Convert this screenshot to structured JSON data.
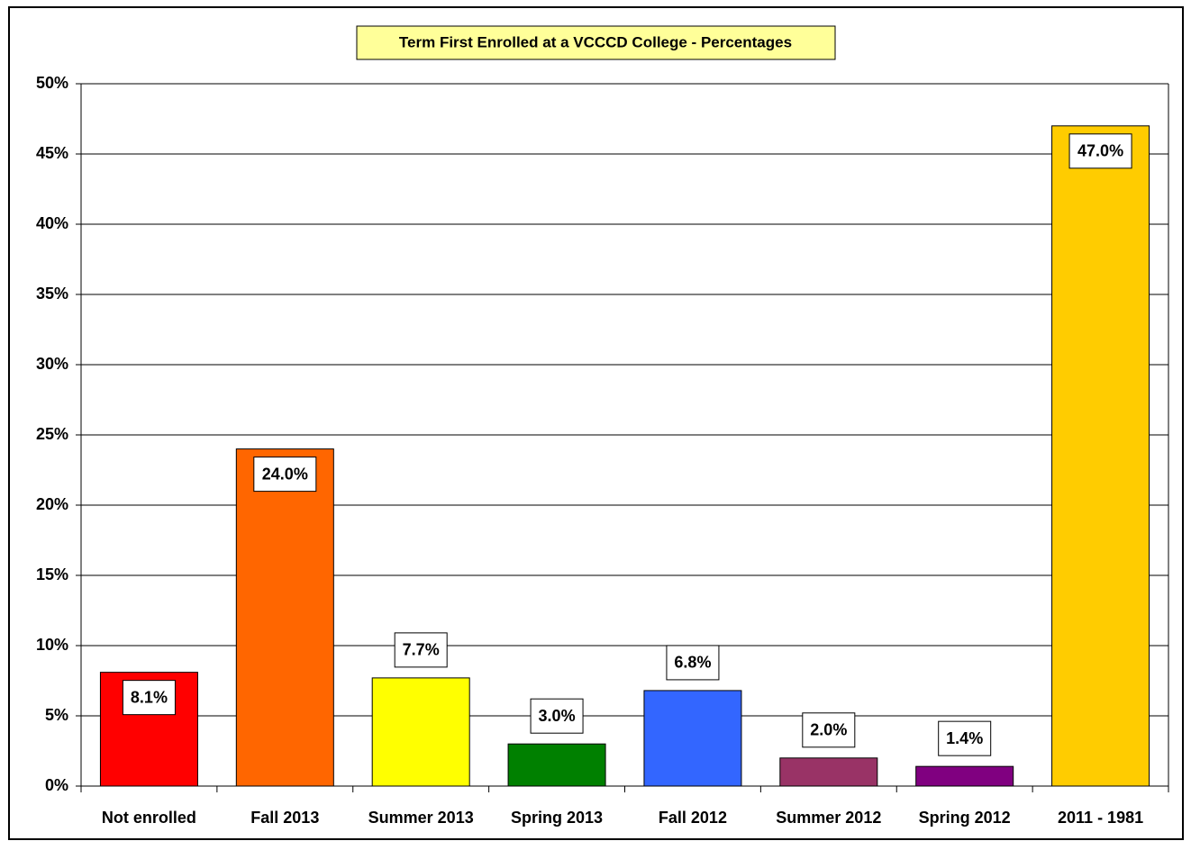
{
  "chart_data": {
    "type": "bar",
    "title": "Term First Enrolled at a VCCCD College - Percentages",
    "categories": [
      "Not enrolled",
      "Fall 2013",
      "Summer 2013",
      "Spring 2013",
      "Fall 2012",
      "Summer 2012",
      "Spring 2012",
      "2011 - 1981"
    ],
    "values": [
      8.1,
      24.0,
      7.7,
      3.0,
      6.8,
      2.0,
      1.4,
      47.0
    ],
    "value_labels": [
      "8.1%",
      "24.0%",
      "7.7%",
      "3.0%",
      "6.8%",
      "2.0%",
      "1.4%",
      "47.0%"
    ],
    "label_positions": [
      "inside",
      "inside",
      "above",
      "above",
      "above",
      "above",
      "above",
      "inside"
    ],
    "colors": [
      "#ff0000",
      "#ff6600",
      "#ffff00",
      "#008000",
      "#3366ff",
      "#993366",
      "#800080",
      "#ffcc00"
    ],
    "ylim": [
      0,
      50
    ],
    "yticks": [
      {
        "value": 0,
        "label": "0%"
      },
      {
        "value": 5,
        "label": "5%"
      },
      {
        "value": 10,
        "label": "10%"
      },
      {
        "value": 15,
        "label": "15%"
      },
      {
        "value": 20,
        "label": "20%"
      },
      {
        "value": 25,
        "label": "25%"
      },
      {
        "value": 30,
        "label": "30%"
      },
      {
        "value": 35,
        "label": "35%"
      },
      {
        "value": 40,
        "label": "40%"
      },
      {
        "value": 45,
        "label": "45%"
      },
      {
        "value": 50,
        "label": "50%"
      }
    ],
    "grid": true
  }
}
